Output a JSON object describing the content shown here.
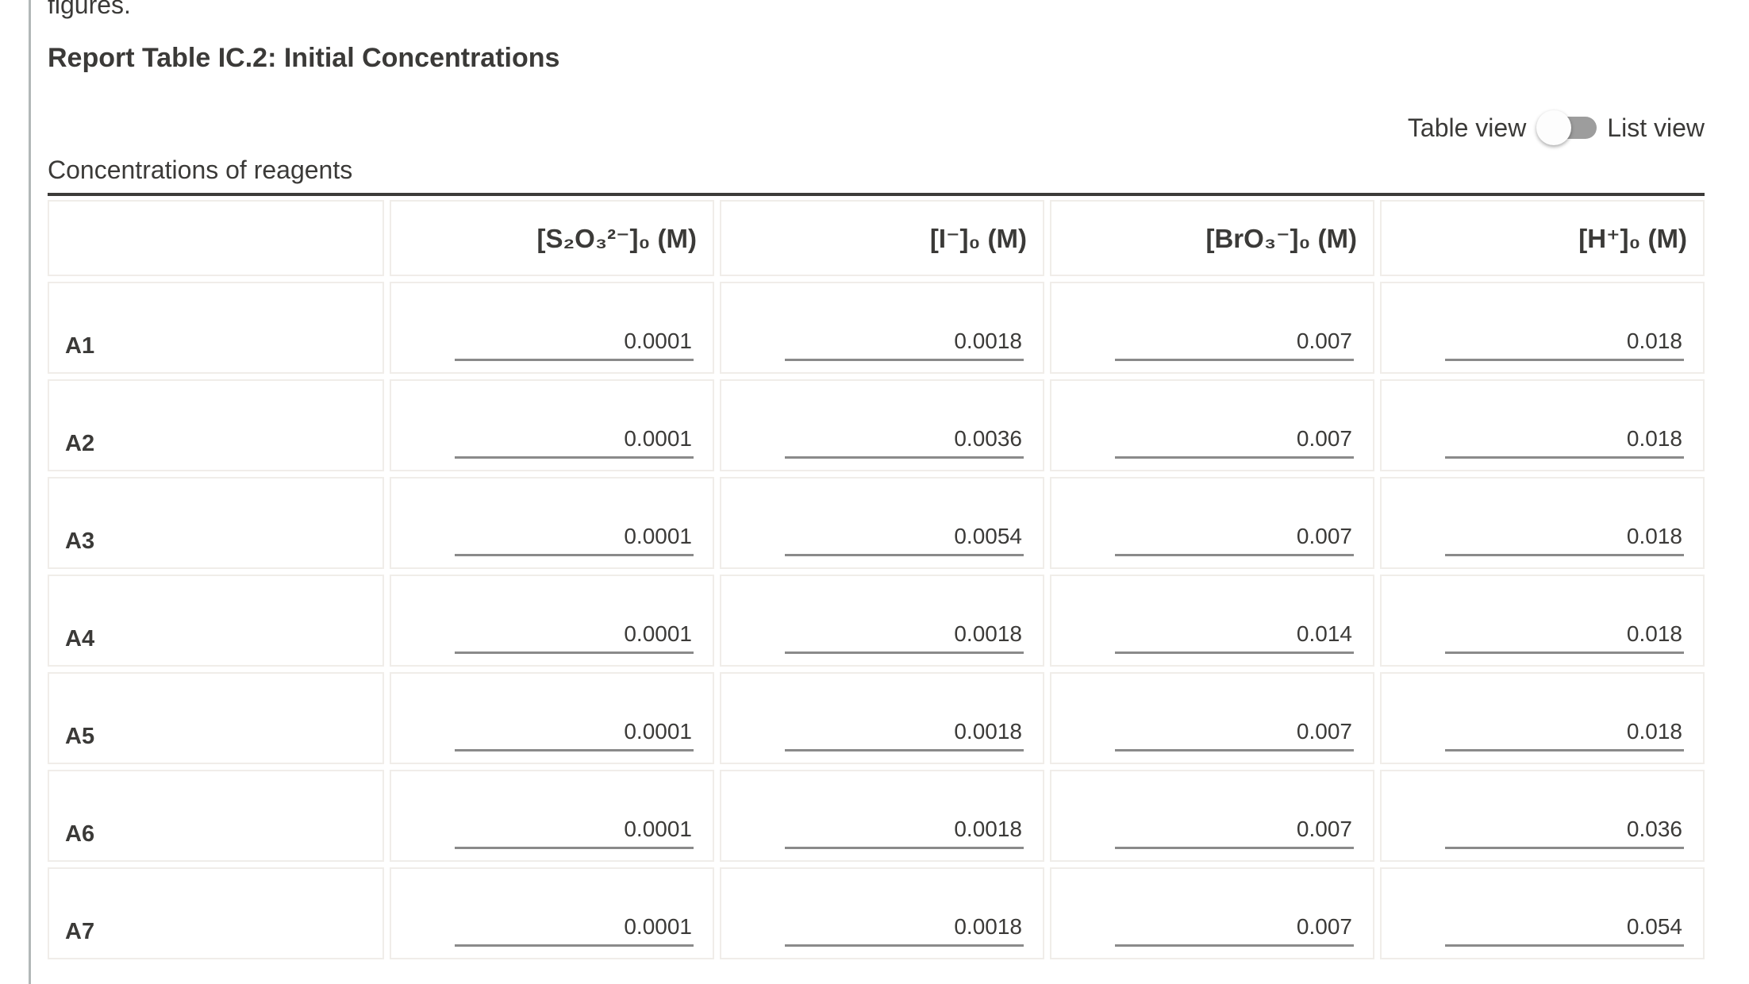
{
  "page": {
    "top_cut_text": "figures.",
    "title": "Report Table IC.2: Initial Concentrations",
    "view_toggle": {
      "left_label": "Table view",
      "right_label": "List view",
      "state": "table"
    },
    "section_label": "Concentrations of reagents"
  },
  "table": {
    "headers": [
      "",
      "[S₂O₃²⁻]₀ (M)",
      "[I⁻]₀ (M)",
      "[BrO₃⁻]₀ (M)",
      "[H⁺]₀ (M)"
    ],
    "rows": [
      {
        "label": "A1",
        "values": [
          "0.0001",
          "0.0018",
          "0.007",
          "0.018"
        ]
      },
      {
        "label": "A2",
        "values": [
          "0.0001",
          "0.0036",
          "0.007",
          "0.018"
        ]
      },
      {
        "label": "A3",
        "values": [
          "0.0001",
          "0.0054",
          "0.007",
          "0.018"
        ]
      },
      {
        "label": "A4",
        "values": [
          "0.0001",
          "0.0018",
          "0.014",
          "0.018"
        ]
      },
      {
        "label": "A5",
        "values": [
          "0.0001",
          "0.0018",
          "0.007",
          "0.018"
        ]
      },
      {
        "label": "A6",
        "values": [
          "0.0001",
          "0.0018",
          "0.007",
          "0.036"
        ]
      },
      {
        "label": "A7",
        "values": [
          "0.0001",
          "0.0018",
          "0.007",
          "0.054"
        ]
      }
    ]
  },
  "colors": {
    "text": "#3b3a38",
    "table_top_border": "#3c3b39",
    "cell_border": "#f0ede9",
    "input_underline": "#8a8a8a",
    "switch_track": "#9d9d9d",
    "switch_thumb": "#fdfdfd",
    "page_divider": "#b2b8b8"
  }
}
